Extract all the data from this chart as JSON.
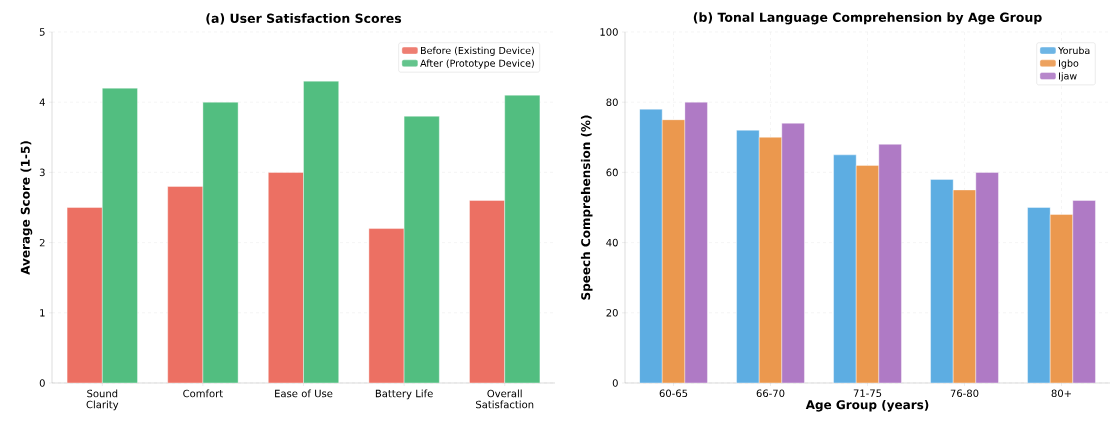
{
  "chart_data": [
    {
      "type": "bar",
      "title": "(a) User Satisfaction Scores",
      "ylabel": "Average Score (1-5)",
      "categories": [
        "Sound Clarity",
        "Comfort",
        "Ease of Use",
        "Battery Life",
        "Overall Satisfaction"
      ],
      "series": [
        {
          "name": "Before (Existing Device)",
          "color": "#ec7063",
          "values": [
            2.5,
            2.8,
            3.0,
            2.2,
            2.6
          ]
        },
        {
          "name": "After (Prototype Device)",
          "color": "#52be80",
          "values": [
            4.2,
            4.0,
            4.3,
            3.8,
            4.1
          ]
        }
      ],
      "ylim": [
        0,
        5
      ],
      "yticks": [
        0,
        1,
        2,
        3,
        4,
        5
      ],
      "grid": "y",
      "legend": "top right"
    },
    {
      "type": "bar",
      "title": "(b) Tonal Language Comprehension by Age Group",
      "xlabel": "Age Group (years)",
      "ylabel": "Speech Comprehension (%)",
      "categories": [
        "60-65",
        "66-70",
        "71-75",
        "76-80",
        "80+"
      ],
      "series": [
        {
          "name": "Yoruba",
          "color": "#5dade2",
          "values": [
            78,
            72,
            65,
            58,
            50
          ]
        },
        {
          "name": "Igbo",
          "color": "#eb984e",
          "values": [
            75,
            70,
            62,
            55,
            48
          ]
        },
        {
          "name": "Ijaw",
          "color": "#af7ac5",
          "values": [
            80,
            74,
            68,
            60,
            52
          ]
        }
      ],
      "ylim": [
        0,
        100
      ],
      "yticks": [
        0,
        20,
        40,
        60,
        80,
        100
      ],
      "grid": true,
      "legend": "top right"
    }
  ]
}
